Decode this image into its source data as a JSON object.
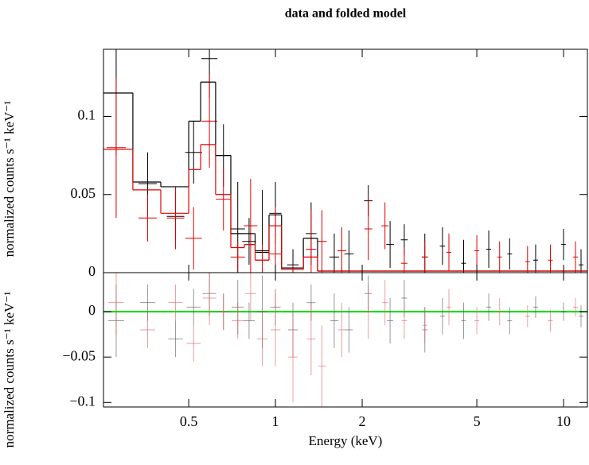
{
  "chart_data": [
    {
      "type": "spectrum",
      "title": "data and folded model",
      "ylabel": "normalized counts s⁻¹ keV⁻¹",
      "xlog": true,
      "xlim": [
        0.253,
        12.1
      ],
      "ylim": [
        0,
        0.143
      ],
      "yticks": [
        0,
        {
          "value": 0.05,
          "label": "0.05"
        },
        {
          "value": 0.1,
          "label": "0.1"
        }
      ],
      "series": [
        {
          "color": "#000000",
          "x": [
            0.28,
            0.36,
            0.45,
            0.52,
            0.59,
            0.66,
            0.74,
            0.81,
            0.9,
            1.0,
            1.15,
            1.33,
            1.6,
            1.8,
            2.1,
            2.5,
            2.8,
            3.3,
            3.8,
            4.5,
            5.5,
            6.5,
            8,
            10,
            11.5
          ],
          "values": [
            0.115,
            0.057,
            0.036,
            0.077,
            0.137,
            0.075,
            0.028,
            0.02,
            0.013,
            0.038,
            0.005,
            0.025,
            0.01,
            0.012,
            0.046,
            0.018,
            0.021,
            0.01,
            0.017,
            0.006,
            0.015,
            0.012,
            0.008,
            0.018,
            0.005
          ],
          "errors": [
            0.04,
            0.02,
            0.015,
            0.02,
            0.025,
            0.02,
            0.03,
            0.015,
            0.04,
            0.02,
            0.01,
            0.02,
            0.015,
            0.015,
            0.01,
            0.015,
            0.01,
            0.015,
            0.012,
            0.015,
            0.012,
            0.01,
            0.01,
            0.01,
            0.01
          ]
        },
        {
          "color": "#e00000",
          "x": [
            0.28,
            0.36,
            0.45,
            0.52,
            0.59,
            0.66,
            0.74,
            0.82,
            0.9,
            1.0,
            1.15,
            1.33,
            1.45,
            1.7,
            2.1,
            2.4,
            2.8,
            3.3,
            4,
            5,
            6,
            7.5,
            9,
            11
          ],
          "values": [
            0.08,
            0.035,
            0.035,
            0.022,
            0.097,
            0.047,
            0.01,
            0.03,
            0.008,
            0.012,
            0.0,
            0.015,
            0.02,
            0.014,
            0.028,
            0.03,
            0.006,
            0.01,
            0.013,
            0.014,
            0.01,
            0.007,
            0.008,
            0.01
          ],
          "errors": [
            0.045,
            0.015,
            0.02,
            0.02,
            0.03,
            0.02,
            0.01,
            0.03,
            0.01,
            0.03,
            0.005,
            0.025,
            0.02,
            0.015,
            0.02,
            0.015,
            0.01,
            0.01,
            0.012,
            0.01,
            0.01,
            0.01,
            0.01,
            0.01
          ]
        },
        {
          "color": "#000000",
          "bins": [
            0.253,
            0.32,
            0.4,
            0.5,
            0.55,
            0.62,
            0.7,
            0.78,
            0.85,
            0.95,
            1.05,
            1.25,
            1.4,
            12.1
          ],
          "values": [
            0.115,
            0.058,
            0.055,
            0.097,
            0.122,
            0.075,
            0.025,
            0.025,
            0.014,
            0.037,
            0.003,
            0.022,
            0.001
          ]
        },
        {
          "color": "#e00000",
          "bins": [
            0.253,
            0.32,
            0.4,
            0.5,
            0.55,
            0.62,
            0.7,
            0.78,
            0.85,
            0.95,
            1.05,
            1.25,
            1.4,
            12.1
          ],
          "values": [
            0.079,
            0.053,
            0.038,
            0.066,
            0.082,
            0.05,
            0.016,
            0.018,
            0.008,
            0.03,
            0.002,
            0.01,
            0.001
          ]
        }
      ]
    },
    {
      "type": "residuals",
      "ylabel": "normalized counts s⁻¹ keV⁻¹",
      "xlabel": "Energy (keV)",
      "xlog": true,
      "xlim": [
        0.253,
        12.1
      ],
      "ylim": [
        -0.105,
        0.043
      ],
      "xticks": [
        0.5,
        1,
        2,
        5,
        10
      ],
      "yticks": [
        {
          "value": -0.1,
          "label": "−0.1"
        },
        {
          "value": -0.05,
          "label": "−0.05"
        },
        0
      ],
      "model_color": "#00dd00",
      "series": [
        {
          "color": "#555555",
          "x": [
            0.28,
            0.36,
            0.45,
            0.52,
            0.59,
            0.66,
            0.74,
            0.81,
            0.9,
            1.0,
            1.15,
            1.33,
            1.6,
            1.8,
            2.1,
            2.5,
            2.8,
            3.3,
            3.8,
            4.5,
            5.5,
            6.5,
            8,
            10,
            11.5
          ],
          "values": [
            -0.01,
            0.01,
            -0.03,
            0.005,
            0.02,
            0.0,
            0.005,
            -0.01,
            0.0,
            0.005,
            -0.02,
            0.01,
            -0.01,
            -0.02,
            0.02,
            -0.01,
            0.015,
            -0.02,
            -0.005,
            -0.01,
            0.005,
            -0.01,
            0.005,
            0.0,
            -0.005
          ],
          "errors": [
            0.04,
            0.02,
            0.02,
            0.02,
            0.025,
            0.02,
            0.03,
            0.02,
            0.04,
            0.02,
            0.03,
            0.02,
            0.03,
            0.025,
            0.02,
            0.025,
            0.02,
            0.025,
            0.02,
            0.02,
            0.015,
            0.015,
            0.012,
            0.01,
            0.012
          ]
        },
        {
          "color": "#e06060",
          "x": [
            0.28,
            0.36,
            0.45,
            0.52,
            0.59,
            0.66,
            0.74,
            0.82,
            0.9,
            1.0,
            1.15,
            1.33,
            1.45,
            1.7,
            2.1,
            2.4,
            2.8,
            3.3,
            4,
            5,
            6,
            7.5,
            9,
            11
          ],
          "values": [
            0.01,
            -0.02,
            0.01,
            -0.035,
            0.015,
            0.0,
            -0.01,
            0.02,
            -0.03,
            -0.02,
            -0.05,
            -0.03,
            -0.06,
            -0.02,
            0.0,
            0.01,
            -0.01,
            -0.015,
            0.005,
            -0.01,
            0.0,
            -0.005,
            -0.01,
            0.005
          ],
          "errors": [
            0.035,
            0.02,
            0.02,
            0.02,
            0.03,
            0.02,
            0.02,
            0.03,
            0.03,
            0.04,
            0.05,
            0.04,
            0.045,
            0.03,
            0.03,
            0.025,
            0.02,
            0.02,
            0.02,
            0.015,
            0.015,
            0.012,
            0.012,
            0.01
          ]
        }
      ]
    }
  ]
}
